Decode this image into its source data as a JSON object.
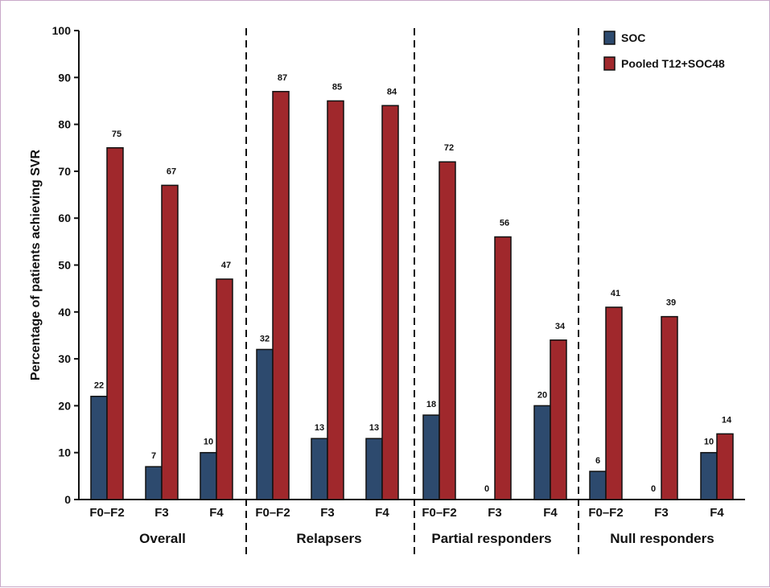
{
  "chart_data": {
    "type": "bar",
    "ylabel": "Percentage of patients achieving SVR",
    "ylim": [
      0,
      100
    ],
    "yticks": [
      0,
      10,
      20,
      30,
      40,
      50,
      60,
      70,
      80,
      90,
      100
    ],
    "grid": false,
    "legend_position": "top-right",
    "groups": [
      {
        "name": "Overall",
        "categories": [
          "F0–F2",
          "F3",
          "F4"
        ]
      },
      {
        "name": "Relapsers",
        "categories": [
          "F0–F2",
          "F3",
          "F4"
        ]
      },
      {
        "name": "Partial responders",
        "categories": [
          "F0–F2",
          "F3",
          "F4"
        ]
      },
      {
        "name": "Null responders",
        "categories": [
          "F0–F2",
          "F3",
          "F4"
        ]
      }
    ],
    "series": [
      {
        "name": "SOC",
        "color": "#2d4a6e",
        "values": [
          22,
          7,
          10,
          32,
          13,
          13,
          18,
          0,
          20,
          6,
          0,
          10
        ],
        "labels": [
          "22",
          "7",
          "10",
          "32",
          "13",
          "13",
          "18",
          "0",
          "20",
          "6",
          "0",
          "10"
        ]
      },
      {
        "name": "Pooled T12+SOC48",
        "color": "#a0282c",
        "values": [
          75,
          67,
          47,
          87,
          85,
          84,
          72,
          56,
          34,
          41,
          39,
          14
        ],
        "labels": [
          "75",
          "67",
          "47",
          "87",
          "85",
          "84",
          "72",
          "56",
          "34",
          "41",
          "39",
          "14"
        ]
      }
    ]
  }
}
